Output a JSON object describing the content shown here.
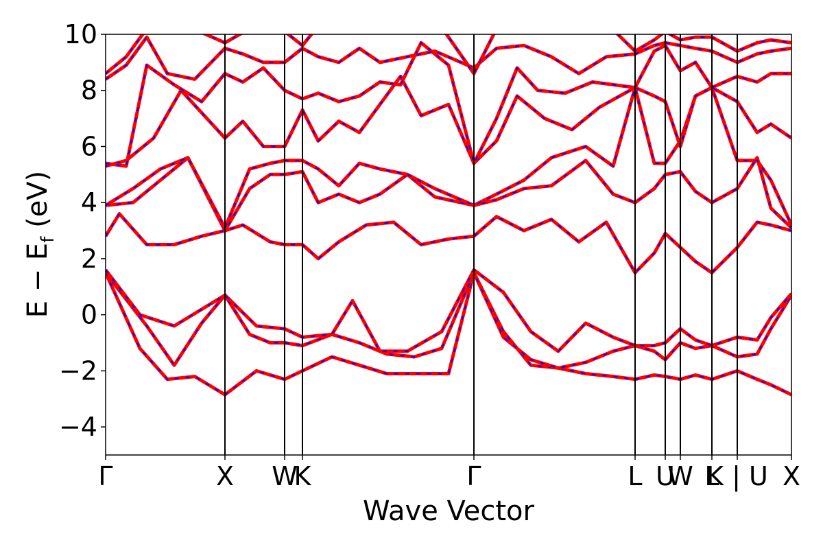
{
  "chart_data": {
    "type": "line",
    "xlabel": "Wave Vector",
    "ylabel": {
      "main": "E − E",
      "sub": "f",
      "unit": " (eV)"
    },
    "ylim": [
      -5,
      10
    ],
    "xlim": [
      0,
      1
    ],
    "yticks": [
      -4,
      -2,
      0,
      2,
      4,
      6,
      8,
      10
    ],
    "ytick_labels": [
      "−4",
      "−2",
      "0",
      "2",
      "4",
      "6",
      "8",
      "10"
    ],
    "kpoints": [
      {
        "x": 0.0,
        "label": "Γ"
      },
      {
        "x": 0.174,
        "label": "X"
      },
      {
        "x": 0.261,
        "label": "W"
      },
      {
        "x": 0.287,
        "label": "K"
      },
      {
        "x": 0.537,
        "label": "Γ"
      },
      {
        "x": 0.772,
        "label": "L"
      },
      {
        "x": 0.816,
        "label": "U"
      },
      {
        "x": 0.838,
        "label": "W"
      },
      {
        "x": 0.884,
        "label": "L"
      },
      {
        "x": 0.921,
        "label": "K | U"
      },
      {
        "x": 1.0,
        "label": "X"
      }
    ],
    "style": {
      "band_color": "#ff0000",
      "overlay_color": "#0000ff",
      "grid": false
    },
    "series": [
      {
        "x": [
          0,
          0.05,
          0.09,
          0.13,
          0.174,
          0.22,
          0.261,
          0.287,
          0.33,
          0.37,
          0.41,
          0.45,
          0.5,
          0.537,
          0.58,
          0.62,
          0.66,
          0.7,
          0.74,
          0.772,
          0.8,
          0.816,
          0.838,
          0.86,
          0.884,
          0.921,
          0.95,
          0.97,
          1.0
        ],
        "y": [
          1.5,
          -1.2,
          -2.3,
          -2.2,
          -2.85,
          -2.0,
          -2.3,
          -2.0,
          -1.5,
          -1.8,
          -2.1,
          -2.1,
          -2.1,
          1.5,
          -0.6,
          -1.8,
          -1.9,
          -2.1,
          -2.2,
          -2.3,
          -2.15,
          -2.2,
          -2.3,
          -2.15,
          -2.3,
          -2.0,
          -2.3,
          -2.5,
          -2.85
        ]
      },
      {
        "x": [
          0,
          0.06,
          0.1,
          0.14,
          0.174,
          0.21,
          0.24,
          0.261,
          0.287,
          0.33,
          0.37,
          0.41,
          0.45,
          0.49,
          0.537,
          0.58,
          0.62,
          0.66,
          0.7,
          0.74,
          0.772,
          0.8,
          0.816,
          0.838,
          0.86,
          0.884,
          0.921,
          0.95,
          0.97,
          1.0
        ],
        "y": [
          1.5,
          -0.4,
          -1.8,
          -0.3,
          0.7,
          -0.7,
          -1.0,
          -1.0,
          -1.1,
          -0.7,
          -1.0,
          -1.4,
          -1.5,
          -1.2,
          1.5,
          -0.8,
          -1.6,
          -1.9,
          -1.7,
          -1.3,
          -1.1,
          -1.3,
          -1.6,
          -1.0,
          -1.2,
          -1.1,
          -1.5,
          -1.4,
          -0.5,
          0.7
        ]
      },
      {
        "x": [
          0,
          0.05,
          0.1,
          0.174,
          0.22,
          0.261,
          0.287,
          0.33,
          0.36,
          0.4,
          0.44,
          0.49,
          0.537,
          0.58,
          0.62,
          0.66,
          0.7,
          0.74,
          0.772,
          0.8,
          0.816,
          0.838,
          0.86,
          0.884,
          0.921,
          0.95,
          0.97,
          1.0
        ],
        "y": [
          1.6,
          0.0,
          -0.4,
          0.7,
          -0.4,
          -0.5,
          -0.8,
          -0.7,
          0.5,
          -1.3,
          -1.3,
          -0.6,
          1.6,
          0.8,
          -0.6,
          -1.3,
          -0.3,
          -0.8,
          -1.1,
          -1.1,
          -1.0,
          -0.5,
          -0.9,
          -1.1,
          -0.8,
          -0.9,
          -0.1,
          0.75
        ]
      },
      {
        "x": [
          0,
          0.02,
          0.06,
          0.1,
          0.14,
          0.174,
          0.2,
          0.24,
          0.261,
          0.287,
          0.31,
          0.34,
          0.38,
          0.42,
          0.46,
          0.5,
          0.537,
          0.57,
          0.61,
          0.65,
          0.69,
          0.73,
          0.772,
          0.8,
          0.816,
          0.838,
          0.86,
          0.884,
          0.921,
          0.95,
          0.97,
          1.0
        ],
        "y": [
          2.8,
          3.6,
          2.5,
          2.5,
          2.8,
          3.0,
          3.2,
          2.6,
          2.5,
          2.5,
          2.0,
          2.6,
          3.2,
          3.3,
          2.5,
          2.7,
          2.8,
          3.5,
          3.0,
          3.4,
          2.6,
          3.3,
          1.5,
          2.2,
          2.9,
          2.4,
          1.9,
          1.5,
          2.4,
          3.3,
          3.2,
          3.0
        ]
      },
      {
        "x": [
          0,
          0.04,
          0.08,
          0.12,
          0.174,
          0.21,
          0.24,
          0.261,
          0.287,
          0.31,
          0.34,
          0.37,
          0.4,
          0.44,
          0.48,
          0.537,
          0.57,
          0.61,
          0.65,
          0.7,
          0.74,
          0.772,
          0.8,
          0.816,
          0.838,
          0.86,
          0.884,
          0.921,
          0.95,
          0.97,
          1.0
        ],
        "y": [
          3.9,
          4.0,
          4.8,
          5.6,
          3.0,
          4.5,
          5.0,
          5.0,
          5.1,
          4.0,
          4.3,
          4.0,
          4.3,
          5.0,
          4.2,
          3.9,
          4.1,
          4.5,
          4.6,
          5.5,
          4.3,
          4.0,
          4.5,
          5.0,
          5.1,
          4.4,
          4.0,
          4.5,
          5.6,
          3.8,
          3.1
        ]
      },
      {
        "x": [
          0,
          0.04,
          0.08,
          0.12,
          0.174,
          0.21,
          0.24,
          0.261,
          0.287,
          0.31,
          0.34,
          0.37,
          0.4,
          0.44,
          0.48,
          0.537,
          0.57,
          0.61,
          0.65,
          0.7,
          0.74,
          0.772,
          0.8,
          0.816,
          0.838,
          0.86,
          0.884,
          0.921,
          0.95,
          0.97,
          1.0
        ],
        "y": [
          3.9,
          4.5,
          5.2,
          5.6,
          3.1,
          5.2,
          5.4,
          5.5,
          5.5,
          5.2,
          4.6,
          5.4,
          5.2,
          5.0,
          4.5,
          3.9,
          4.3,
          4.8,
          5.6,
          6.0,
          5.3,
          8.1,
          5.4,
          5.4,
          6.2,
          7.8,
          8.1,
          5.5,
          5.5,
          4.8,
          3.2
        ]
      },
      {
        "x": [
          0,
          0.03,
          0.07,
          0.11,
          0.174,
          0.2,
          0.23,
          0.261,
          0.287,
          0.31,
          0.34,
          0.37,
          0.4,
          0.43,
          0.46,
          0.5,
          0.537,
          0.57,
          0.6,
          0.64,
          0.68,
          0.72,
          0.772,
          0.8,
          0.816,
          0.838,
          0.86,
          0.884,
          0.921,
          0.95,
          0.97,
          1.0
        ],
        "y": [
          5.3,
          5.5,
          6.3,
          8.0,
          6.3,
          6.9,
          6.0,
          6.0,
          7.3,
          6.2,
          6.9,
          6.5,
          7.5,
          8.5,
          7.1,
          7.5,
          5.4,
          6.2,
          7.8,
          7.0,
          6.6,
          7.4,
          8.1,
          7.8,
          7.6,
          6.0,
          7.8,
          8.1,
          7.6,
          6.5,
          6.8,
          6.3
        ]
      },
      {
        "x": [
          0,
          0.03,
          0.06,
          0.1,
          0.14,
          0.174,
          0.2,
          0.23,
          0.261,
          0.287,
          0.31,
          0.34,
          0.37,
          0.4,
          0.43,
          0.46,
          0.5,
          0.537,
          0.57,
          0.6,
          0.63,
          0.67,
          0.71,
          0.772,
          0.8,
          0.816,
          0.838,
          0.86,
          0.884,
          0.921,
          0.95,
          0.97,
          1.0
        ],
        "y": [
          5.4,
          5.3,
          8.9,
          8.2,
          7.6,
          8.6,
          8.3,
          8.8,
          8.0,
          7.7,
          7.9,
          7.6,
          7.8,
          8.3,
          8.2,
          9.7,
          8.9,
          5.4,
          7.0,
          8.8,
          8.0,
          7.9,
          8.3,
          8.1,
          9.4,
          9.6,
          8.7,
          9.0,
          8.1,
          8.5,
          8.3,
          8.6,
          8.6
        ]
      },
      {
        "x": [
          0,
          0.03,
          0.06,
          0.09,
          0.13,
          0.174,
          0.2,
          0.23,
          0.261,
          0.287,
          0.31,
          0.34,
          0.37,
          0.4,
          0.44,
          0.48,
          0.537,
          0.57,
          0.61,
          0.65,
          0.69,
          0.73,
          0.772,
          0.8,
          0.816,
          0.838,
          0.86,
          0.884,
          0.921,
          0.95,
          0.97,
          1.0
        ],
        "y": [
          8.4,
          8.9,
          9.9,
          8.6,
          8.4,
          9.5,
          9.3,
          9.0,
          9.0,
          9.5,
          9.2,
          9.0,
          9.5,
          9.0,
          9.2,
          9.4,
          8.8,
          9.5,
          9.6,
          9.2,
          8.6,
          9.2,
          9.3,
          9.6,
          9.7,
          9.6,
          9.5,
          9.4,
          9.0,
          9.3,
          9.4,
          9.5
        ]
      },
      {
        "x": [
          0,
          0.03,
          0.06,
          0.1,
          0.174,
          0.21,
          0.24,
          0.261,
          0.287,
          0.31,
          0.35,
          0.39,
          0.43,
          0.48,
          0.537,
          0.57,
          0.61,
          0.65,
          0.69,
          0.73,
          0.772,
          0.8,
          0.816,
          0.838,
          0.86,
          0.884,
          0.921,
          0.95,
          0.97,
          1.0
        ],
        "y": [
          8.6,
          9.2,
          10.2,
          10.5,
          9.7,
          10.2,
          10.4,
          10.1,
          9.6,
          10.3,
          10.5,
          10.1,
          10.3,
          10.6,
          8.6,
          10.2,
          10.4,
          10.3,
          10.2,
          10.4,
          9.4,
          9.8,
          10.1,
          9.8,
          9.9,
          9.9,
          9.4,
          9.7,
          9.8,
          9.7
        ]
      }
    ]
  }
}
